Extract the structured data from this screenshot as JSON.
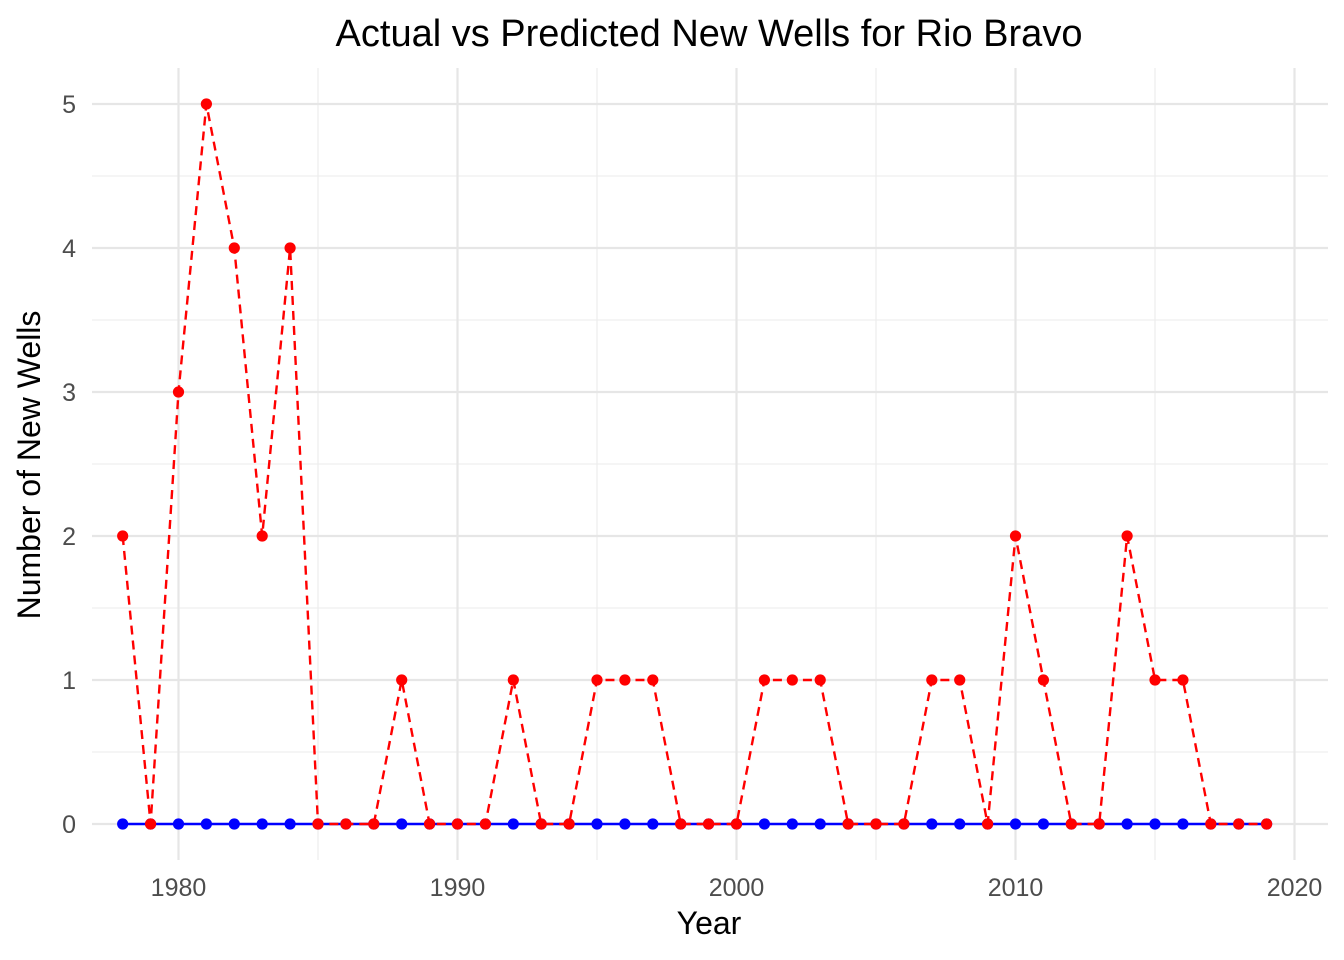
{
  "chart_data": {
    "type": "line",
    "title": "Actual vs Predicted New Wells for Rio Bravo",
    "xlabel": "Year",
    "ylabel": "Number of New Wells",
    "xlim": [
      1976.9,
      2021.2
    ],
    "ylim": [
      -0.25,
      5.25
    ],
    "x_ticks": [
      1980,
      1990,
      2000,
      2010,
      2020
    ],
    "y_ticks": [
      0,
      1,
      2,
      3,
      4,
      5
    ],
    "grid": true,
    "legend": "none",
    "x": [
      1978,
      1979,
      1980,
      1981,
      1982,
      1983,
      1984,
      1985,
      1986,
      1987,
      1988,
      1989,
      1990,
      1991,
      1992,
      1993,
      1994,
      1995,
      1996,
      1997,
      1998,
      1999,
      2000,
      2001,
      2002,
      2003,
      2004,
      2005,
      2006,
      2007,
      2008,
      2009,
      2010,
      2011,
      2012,
      2013,
      2014,
      2015,
      2016,
      2017,
      2018,
      2019
    ],
    "series": [
      {
        "color": "#0000ff",
        "line_style": "solid",
        "values": [
          0,
          0,
          0,
          0,
          0,
          0,
          0,
          0,
          0,
          0,
          0,
          0,
          0,
          0,
          0,
          0,
          0,
          0,
          0,
          0,
          0,
          0,
          0,
          0,
          0,
          0,
          0,
          0,
          0,
          0,
          0,
          0,
          0,
          0,
          0,
          0,
          0,
          0,
          0,
          0,
          0,
          0
        ]
      },
      {
        "color": "#ff0000",
        "line_style": "dashed",
        "values": [
          2,
          0,
          3,
          5,
          4,
          2,
          4,
          0,
          0,
          0,
          1,
          0,
          0,
          0,
          1,
          0,
          0,
          1,
          1,
          1,
          0,
          0,
          0,
          1,
          1,
          1,
          0,
          0,
          0,
          1,
          1,
          0,
          2,
          1,
          0,
          0,
          2,
          1,
          1,
          0,
          0,
          0
        ]
      }
    ]
  }
}
